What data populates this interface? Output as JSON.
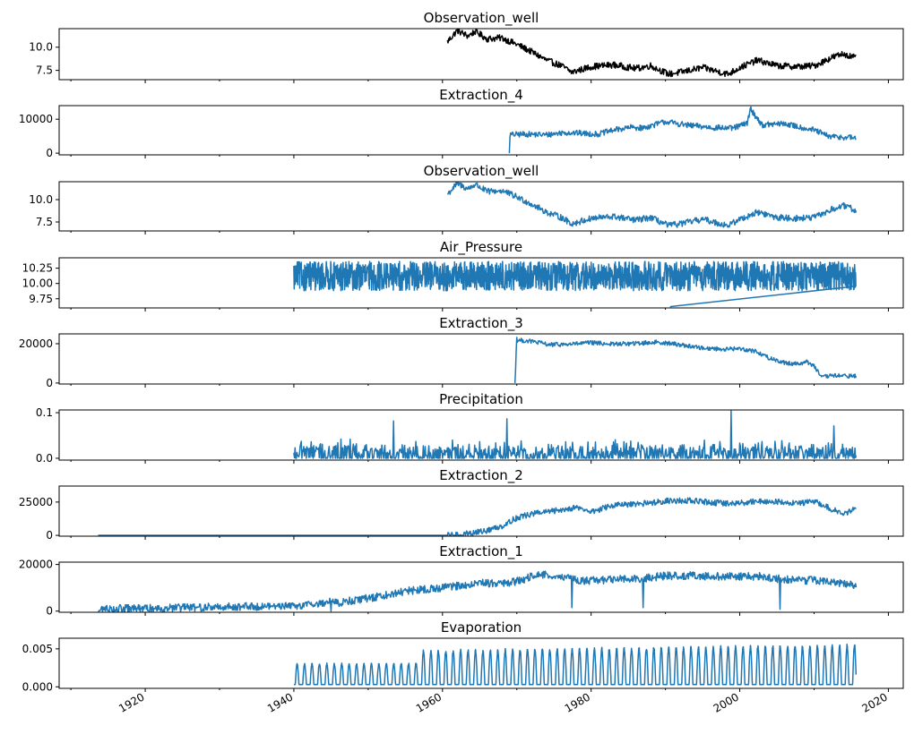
{
  "chart_data": {
    "type": "line",
    "layout": "stacked-subplots-shared-x",
    "grid": false,
    "legend": "none",
    "xaxis": {
      "kind": "date",
      "xlim": [
        "1908-06",
        "2022-01"
      ],
      "ticks": [
        "1920-01",
        "1940-01",
        "1960-01",
        "1980-01",
        "2000-01",
        "2020-01"
      ],
      "tick_labels": [
        "1920",
        "1940",
        "1960",
        "1980",
        "2000",
        "2020"
      ],
      "minor_ticks": [
        "1910-01",
        "1930-01",
        "1950-01",
        "1970-01",
        "1990-01",
        "2010-01"
      ]
    },
    "panels": [
      {
        "title": "Observation_well",
        "color": "#000000",
        "ylim": [
          6.5,
          12.0
        ],
        "yticks": [
          7.5,
          10.0
        ],
        "ytick_labels": [
          "7.5",
          "10.0"
        ],
        "x": [
          "1960-09",
          "1962-01",
          "1963-06",
          "1964-06",
          "1966-01",
          "1968-01",
          "1970-01",
          "1972-01",
          "1974-01",
          "1976-01",
          "1977-06",
          "1980-01",
          "1983-01",
          "1986-01",
          "1988-01",
          "1990-06",
          "1992-01",
          "1995-01",
          "1998-06",
          "2000-01",
          "2002-06",
          "2005-01",
          "2008-01",
          "2010-01",
          "2012-06",
          "2014-01",
          "2015-09"
        ],
        "y": [
          10.6,
          11.8,
          11.2,
          11.7,
          10.9,
          11.0,
          10.3,
          9.5,
          8.6,
          8.0,
          7.3,
          7.9,
          8.1,
          7.7,
          8.0,
          7.1,
          7.3,
          7.8,
          7.1,
          7.8,
          8.6,
          8.0,
          7.9,
          8.0,
          8.9,
          9.3,
          8.8
        ],
        "noise": 0.35
      },
      {
        "title": "Extraction_4",
        "color": "#1f77b4",
        "ylim": [
          -500,
          14000
        ],
        "yticks": [
          0,
          10000
        ],
        "ytick_labels": [
          "0",
          "10000"
        ],
        "x": [
          "1969-01",
          "1969-02",
          "1971-01",
          "1974-01",
          "1976-06",
          "1979-01",
          "1981-01",
          "1983-01",
          "1985-06",
          "1987-01",
          "1990-01",
          "1993-01",
          "1996-01",
          "1999-01",
          "2001-01",
          "2001-06",
          "2003-01",
          "2006-01",
          "2008-01",
          "2010-01",
          "2012-01",
          "2015-09"
        ],
        "y": [
          0,
          5400,
          5600,
          5400,
          6100,
          5800,
          5600,
          6800,
          7600,
          7400,
          9300,
          8200,
          7600,
          7300,
          8800,
          13100,
          8300,
          8700,
          7700,
          6800,
          4900,
          4500
        ],
        "noise": 850
      },
      {
        "title": "Observation_well",
        "color": "#1f77b4",
        "ylim": [
          6.5,
          12.0
        ],
        "yticks": [
          7.5,
          10.0
        ],
        "ytick_labels": [
          "7.5",
          "10.0"
        ],
        "x": [
          "1960-09",
          "1962-01",
          "1963-06",
          "1964-06",
          "1966-01",
          "1968-01",
          "1970-01",
          "1972-01",
          "1974-01",
          "1976-01",
          "1977-06",
          "1980-01",
          "1983-01",
          "1986-01",
          "1988-01",
          "1990-06",
          "1992-01",
          "1995-01",
          "1998-06",
          "2000-01",
          "2002-06",
          "2005-01",
          "2008-01",
          "2010-01",
          "2012-06",
          "2014-01",
          "2015-09"
        ],
        "y": [
          10.6,
          11.8,
          11.2,
          11.7,
          10.9,
          11.0,
          10.3,
          9.5,
          8.6,
          8.0,
          7.3,
          7.9,
          8.1,
          7.7,
          8.0,
          7.1,
          7.3,
          7.8,
          7.1,
          7.8,
          8.6,
          8.0,
          7.9,
          8.0,
          8.9,
          9.3,
          8.8
        ],
        "noise": 0.35
      },
      {
        "title": "Air_Pressure",
        "color": "#1f77b4",
        "ylim": [
          9.6,
          10.42
        ],
        "yticks": [
          9.75,
          10.0,
          10.25
        ],
        "ytick_labels": [
          "9.75",
          "10.00",
          "10.25"
        ],
        "x": [
          "1940-01",
          "2015-09"
        ],
        "y": [
          10.12,
          10.12
        ],
        "band": [
          9.88,
          10.36
        ],
        "noise": 0.24
      },
      {
        "title": "Extraction_3",
        "color": "#1f77b4",
        "ylim": [
          -500,
          25000
        ],
        "yticks": [
          0,
          20000
        ],
        "ytick_labels": [
          "0",
          "20000"
        ],
        "x": [
          "1969-10",
          "1970-01",
          "1970-02",
          "1972-01",
          "1974-06",
          "1977-01",
          "1980-01",
          "1983-01",
          "1986-01",
          "1989-01",
          "1992-01",
          "1995-01",
          "1998-01",
          "2000-01",
          "2002-01",
          "2004-01",
          "2006-01",
          "2008-01",
          "2009-01",
          "2010-01",
          "2011-01",
          "2012-06",
          "2015-09"
        ],
        "y": [
          0,
          23000,
          21800,
          21200,
          19500,
          19700,
          20500,
          19800,
          20100,
          20800,
          19500,
          17800,
          17200,
          17500,
          16300,
          12700,
          10300,
          9800,
          10800,
          8900,
          2800,
          3800,
          3500
        ],
        "noise": 1100
      },
      {
        "title": "Precipitation",
        "color": "#1f77b4",
        "ylim": [
          -0.004,
          0.106
        ],
        "yticks": [
          0.0,
          0.1
        ],
        "ytick_labels": [
          "0.0",
          "0.1"
        ],
        "x": [
          "1940-01",
          "2015-09"
        ],
        "y": [
          0.004,
          0.004
        ],
        "noise": 0.02,
        "spikes": [
          [
            "1953-06",
            0.073
          ],
          [
            "1968-09",
            0.079
          ],
          [
            "1998-11",
            0.101
          ],
          [
            "2012-09",
            0.056
          ]
        ]
      },
      {
        "title": "Extraction_2",
        "color": "#1f77b4",
        "ylim": [
          -600,
          37000
        ],
        "yticks": [
          0,
          25000
        ],
        "ytick_labels": [
          "0",
          "25000"
        ],
        "x": [
          "1913-09",
          "1940-01",
          "1960-09",
          "1962-01",
          "1964-01",
          "1966-01",
          "1968-01",
          "1970-01",
          "1972-06",
          "1975-01",
          "1978-01",
          "1980-01",
          "1983-01",
          "1986-01",
          "1990-01",
          "1993-01",
          "1996-01",
          "1999-01",
          "2002-01",
          "2005-01",
          "2008-01",
          "2010-01",
          "2012-01",
          "2014-01",
          "2015-09"
        ],
        "y": [
          0,
          0,
          0,
          300,
          1800,
          3600,
          7100,
          13200,
          16600,
          18300,
          21100,
          17600,
          22600,
          23200,
          25800,
          26100,
          24800,
          23600,
          25600,
          25100,
          24400,
          25500,
          20600,
          15800,
          20200
        ],
        "noise": 2200
      },
      {
        "title": "Extraction_1",
        "color": "#1f77b4",
        "ylim": [
          -500,
          21000
        ],
        "yticks": [
          0,
          20000
        ],
        "ytick_labels": [
          "0",
          "20000"
        ],
        "x": [
          "1913-09",
          "1914-06",
          "1920-01",
          "1930-01",
          "1940-01",
          "1944-01",
          "1945-01",
          "1946-01",
          "1950-01",
          "1955-01",
          "1960-01",
          "1965-01",
          "1968-01",
          "1970-01",
          "1973-01",
          "1976-01",
          "1979-01",
          "1983-01",
          "1987-01",
          "1990-01",
          "1994-01",
          "1998-01",
          "2002-01",
          "2006-01",
          "2010-01",
          "2015-09"
        ],
        "y": [
          0,
          1000,
          1100,
          1800,
          2300,
          3400,
          4600,
          3600,
          5500,
          8600,
          9900,
          12100,
          11800,
          12700,
          15800,
          15100,
          12900,
          13600,
          14100,
          15100,
          15200,
          14800,
          15000,
          13600,
          13100,
          11100
        ],
        "noise": 1700,
        "spikes": [
          [
            "1945-01",
            0
          ],
          [
            "1977-06",
            1500
          ],
          [
            "1987-01",
            1500
          ],
          [
            "2005-06",
            800
          ]
        ]
      },
      {
        "title": "Evaporation",
        "color": "#1f77b4",
        "ylim": [
          -0.0002,
          0.0064
        ],
        "yticks": [
          0.0,
          0.005
        ],
        "ytick_labels": [
          "0.000",
          "0.005"
        ],
        "x": [
          "1940-01",
          "2015-09"
        ],
        "y": [
          0.0003,
          0.0003
        ],
        "seasonal": [
          [
            "1940-01",
            0.0031
          ],
          [
            "1957-01",
            0.0032
          ],
          [
            "1957-02",
            0.0049
          ],
          [
            "2015-09",
            0.0057
          ]
        ]
      }
    ]
  }
}
